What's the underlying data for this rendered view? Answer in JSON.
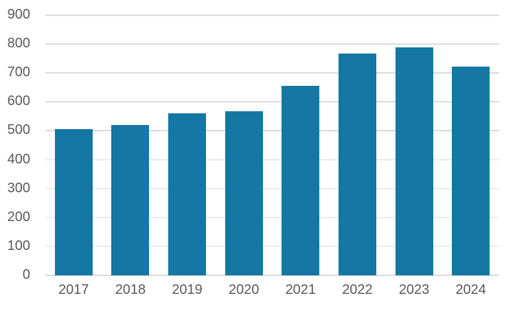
{
  "chart_data": {
    "type": "bar",
    "title": "",
    "xlabel": "",
    "ylabel": "",
    "categories": [
      "2017",
      "2018",
      "2019",
      "2020",
      "2021",
      "2022",
      "2023",
      "2024"
    ],
    "values": [
      505,
      520,
      560,
      567,
      656,
      766,
      789,
      721
    ],
    "ylim": [
      0,
      900
    ],
    "ytick_step": 100,
    "ytick_labels": [
      "0",
      "100",
      "200",
      "300",
      "400",
      "500",
      "600",
      "700",
      "800",
      "900"
    ],
    "grid": true,
    "legend": false,
    "colors": {
      "bar": "#1477A4",
      "gridline": "#D9D9D9",
      "axis_line": "#D9D9D9",
      "tick_label": "#595959",
      "background": "#FFFFFF"
    }
  }
}
